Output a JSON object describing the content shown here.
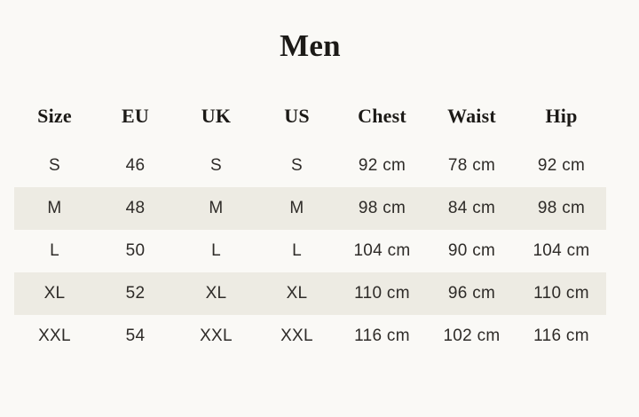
{
  "title": "Men",
  "table": {
    "headers": [
      "Size",
      "EU",
      "UK",
      "US",
      "Chest",
      "Waist",
      "Hip"
    ],
    "rows": [
      [
        "S",
        "46",
        "S",
        "S",
        "92 cm",
        "78 cm",
        "92 cm"
      ],
      [
        "M",
        "48",
        "M",
        "M",
        "98 cm",
        "84 cm",
        "98 cm"
      ],
      [
        "L",
        "50",
        "L",
        "L",
        "104 cm",
        "90 cm",
        "104 cm"
      ],
      [
        "XL",
        "52",
        "XL",
        "XL",
        "110 cm",
        "96 cm",
        "110 cm"
      ],
      [
        "XXL",
        "54",
        "XXL",
        "XXL",
        "116 cm",
        "102 cm",
        "116 cm"
      ]
    ],
    "striped_row_indices": [
      1,
      3
    ]
  },
  "colors": {
    "background": "#faf9f6",
    "stripe": "#edebe3",
    "heading_text": "#1c1a17",
    "body_text": "#2e2b28"
  }
}
